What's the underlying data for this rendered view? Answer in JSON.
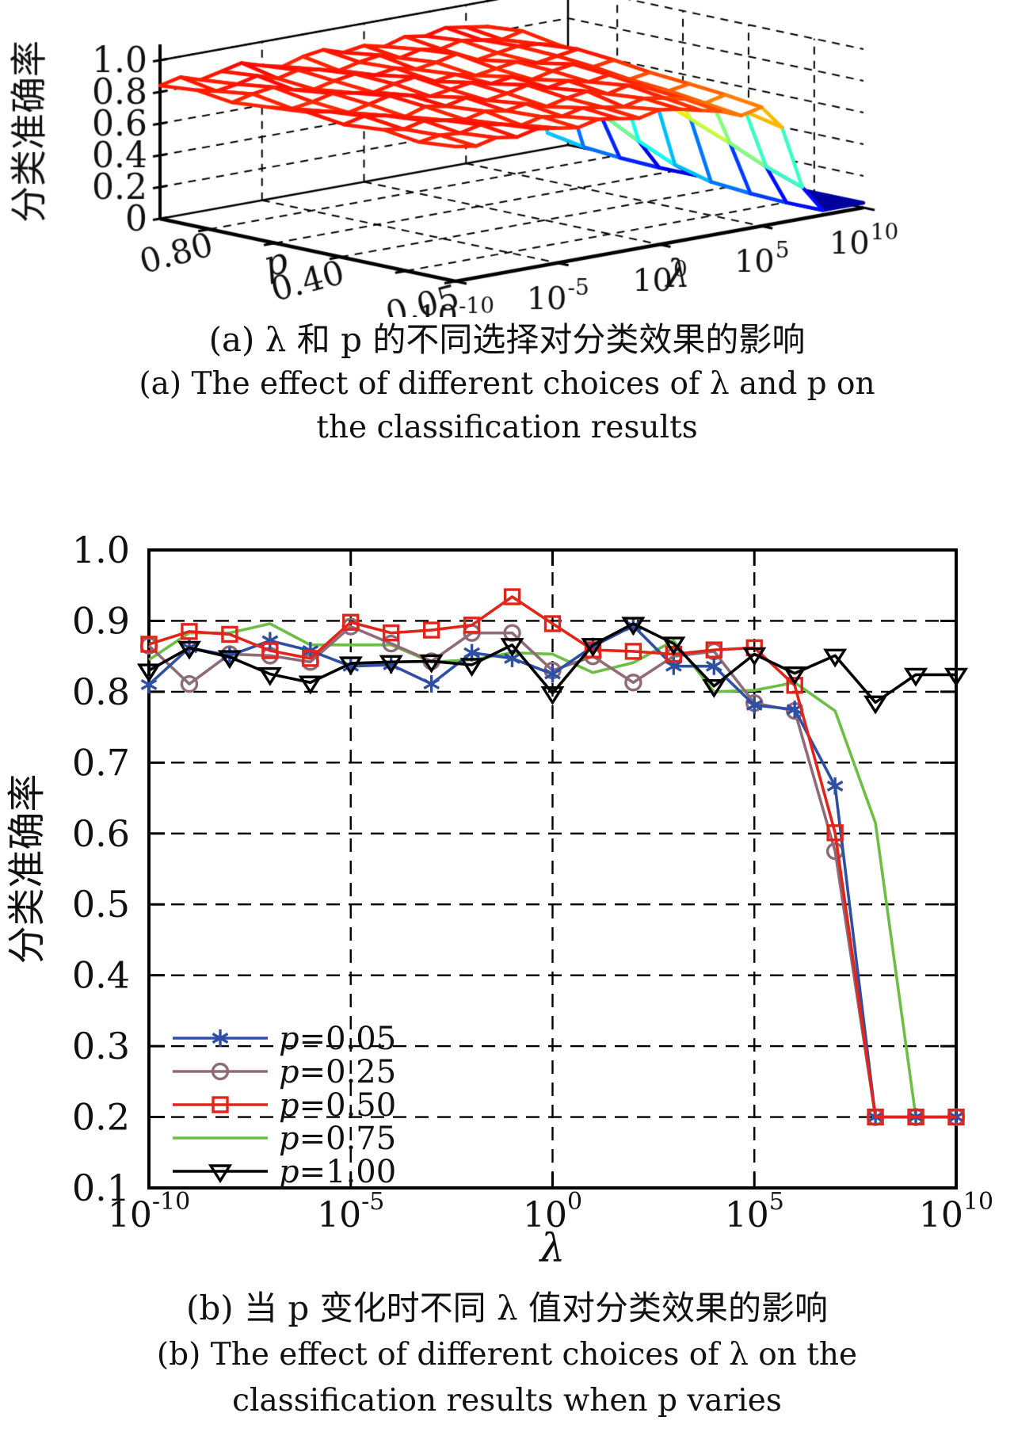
{
  "figure": {
    "panel_a": {
      "caption_zh": "(a) λ 和 p 的不同选择对分类效果的影响",
      "caption_en_1": "(a) The effect of different choices of λ and p on",
      "caption_en_2": "the classification results"
    },
    "panel_b": {
      "caption_zh": "(b) 当 p 变化时不同 λ 值对分类效果的影响",
      "caption_en_1": "(b) The effect of different choices of λ on the",
      "caption_en_2": "classification results when p varies"
    }
  },
  "chart_data": [
    {
      "type": "surface3d",
      "zlabel": "分类准确率",
      "xlabel": "λ",
      "ylabel": "p",
      "z_ticks": [
        0,
        0.2,
        0.4,
        0.6,
        0.8,
        1.0
      ],
      "z_tick_labels": [
        "0",
        "0.2",
        "0.4",
        "0.6",
        "0.8",
        "1.0"
      ],
      "x_tick_exponents": [
        -10,
        -5,
        0,
        5,
        10
      ],
      "p_tick_values": [
        0.8,
        0.6,
        0.4,
        0.2,
        0.05
      ],
      "p_tick_labels": [
        "0.80",
        "0.40",
        "0.05"
      ],
      "p_tick_label_values": [
        0.8,
        0.4,
        0.05
      ],
      "zlim": [
        0,
        1
      ],
      "grid": "dashed",
      "colormap": "jet",
      "p_values": [
        0.95,
        0.84,
        0.73,
        0.61,
        0.5,
        0.39,
        0.27,
        0.16,
        0.05
      ],
      "lambda_exponents": [
        -10,
        -9,
        -8,
        -7,
        -6,
        -5,
        -4,
        -3,
        -2,
        -1,
        0,
        1,
        2,
        3,
        4,
        5,
        6,
        7,
        8,
        9,
        10
      ],
      "accuracy_grid": [
        [
          0.84,
          0.87,
          0.83,
          0.86,
          0.89,
          0.85,
          0.82,
          0.86,
          0.88,
          0.84,
          0.86,
          0.83,
          0.87,
          0.85,
          0.88,
          0.86,
          0.84,
          0.8,
          0.62,
          0.1,
          0.03
        ],
        [
          0.86,
          0.83,
          0.85,
          0.88,
          0.84,
          0.87,
          0.85,
          0.82,
          0.85,
          0.87,
          0.83,
          0.86,
          0.84,
          0.87,
          0.85,
          0.83,
          0.86,
          0.78,
          0.5,
          0.06,
          0.03
        ],
        [
          0.83,
          0.86,
          0.88,
          0.84,
          0.82,
          0.85,
          0.87,
          0.84,
          0.86,
          0.83,
          0.85,
          0.88,
          0.82,
          0.84,
          0.86,
          0.85,
          0.82,
          0.72,
          0.35,
          0.04,
          0.03
        ],
        [
          0.85,
          0.82,
          0.84,
          0.87,
          0.85,
          0.83,
          0.86,
          0.88,
          0.83,
          0.85,
          0.82,
          0.84,
          0.86,
          0.83,
          0.85,
          0.87,
          0.8,
          0.65,
          0.22,
          0.03,
          0.03
        ],
        [
          0.87,
          0.85,
          0.82,
          0.85,
          0.88,
          0.86,
          0.83,
          0.85,
          0.87,
          0.84,
          0.86,
          0.82,
          0.85,
          0.87,
          0.83,
          0.85,
          0.78,
          0.58,
          0.12,
          0.03,
          0.03
        ],
        [
          0.84,
          0.87,
          0.85,
          0.82,
          0.86,
          0.84,
          0.87,
          0.83,
          0.85,
          0.88,
          0.84,
          0.86,
          0.83,
          0.85,
          0.8,
          0.82,
          0.74,
          0.48,
          0.06,
          0.03,
          0.03
        ],
        [
          0.86,
          0.84,
          0.87,
          0.85,
          0.83,
          0.86,
          0.84,
          0.86,
          0.82,
          0.85,
          0.87,
          0.83,
          0.86,
          0.82,
          0.78,
          0.8,
          0.7,
          0.38,
          0.04,
          0.03,
          0.03
        ],
        [
          0.83,
          0.85,
          0.84,
          0.87,
          0.85,
          0.82,
          0.85,
          0.83,
          0.86,
          0.84,
          0.82,
          0.85,
          0.83,
          0.8,
          0.75,
          0.78,
          0.65,
          0.28,
          0.03,
          0.03,
          0.03
        ],
        [
          0.85,
          0.83,
          0.86,
          0.84,
          0.87,
          0.85,
          0.83,
          0.86,
          0.84,
          0.82,
          0.85,
          0.83,
          0.8,
          0.77,
          0.72,
          0.75,
          0.6,
          0.2,
          0.03,
          0.03,
          0.03
        ]
      ]
    },
    {
      "type": "line",
      "xlabel": "λ",
      "ylabel": "分类准确率",
      "x_scale": "log",
      "xlim_exponents": [
        -10,
        10
      ],
      "ylim": [
        0.1,
        1.0
      ],
      "y_tick_values": [
        1.0,
        0.9,
        0.8,
        0.7,
        0.6,
        0.5,
        0.4,
        0.3,
        0.2,
        0.1
      ],
      "y_tick_labels": [
        "1.0",
        "0.9",
        "0.8",
        "0.7",
        "0.6",
        "0.5",
        "0.4",
        "0.3",
        "0.2",
        "0.1"
      ],
      "y_gridlines": [
        0.9,
        0.8,
        0.7,
        0.6,
        0.5,
        0.4,
        0.3,
        0.2
      ],
      "x_tick_exponents": [
        -10,
        -5,
        0,
        5,
        10
      ],
      "x_gridline_exponents": [
        -5,
        0,
        5
      ],
      "grid": "dashed",
      "legend_position": "lower-left",
      "lambda_exponents": [
        -10,
        -9,
        -8,
        -7,
        -6,
        -5,
        -4,
        -3,
        -2,
        -1,
        0,
        1,
        2,
        3,
        4,
        5,
        6,
        7,
        8,
        9,
        10
      ],
      "series": [
        {
          "name": "p=0.05",
          "color": "#2e4fa3",
          "marker": "asterisk",
          "values": [
            0.81,
            0.862,
            0.851,
            0.872,
            0.858,
            0.836,
            0.838,
            0.811,
            0.855,
            0.847,
            0.825,
            0.864,
            0.893,
            0.836,
            0.836,
            0.781,
            0.775,
            0.667,
            0.2,
            0.2,
            0.2
          ]
        },
        {
          "name": "p=0.25",
          "color": "#8e6b77",
          "marker": "circle",
          "values": [
            0.865,
            0.811,
            0.853,
            0.851,
            0.842,
            0.892,
            0.868,
            0.843,
            0.883,
            0.883,
            0.83,
            0.85,
            0.813,
            0.85,
            0.857,
            0.784,
            0.773,
            0.575,
            0.2,
            0.2,
            0.2
          ]
        },
        {
          "name": "p=0.50",
          "color": "#e1251b",
          "marker": "square",
          "values": [
            0.867,
            0.885,
            0.881,
            0.858,
            0.847,
            0.898,
            0.883,
            0.887,
            0.894,
            0.934,
            0.896,
            0.859,
            0.857,
            0.853,
            0.859,
            0.862,
            0.809,
            0.601,
            0.2,
            0.2,
            0.2
          ]
        },
        {
          "name": "p=0.75",
          "color": "#6cbf44",
          "marker": "none",
          "values": [
            0.845,
            0.883,
            0.883,
            0.896,
            0.866,
            0.866,
            0.866,
            0.842,
            0.845,
            0.855,
            0.853,
            0.827,
            0.841,
            0.872,
            0.8,
            0.802,
            0.813,
            0.773,
            0.615,
            0.2,
            0.2
          ]
        },
        {
          "name": "p=1.00",
          "color": "#000000",
          "marker": "triangle-down",
          "values": [
            0.83,
            0.862,
            0.849,
            0.825,
            0.813,
            0.84,
            0.842,
            0.843,
            0.838,
            0.866,
            0.798,
            0.866,
            0.896,
            0.868,
            0.808,
            0.853,
            0.826,
            0.851,
            0.785,
            0.824,
            0.824
          ]
        }
      ]
    }
  ]
}
